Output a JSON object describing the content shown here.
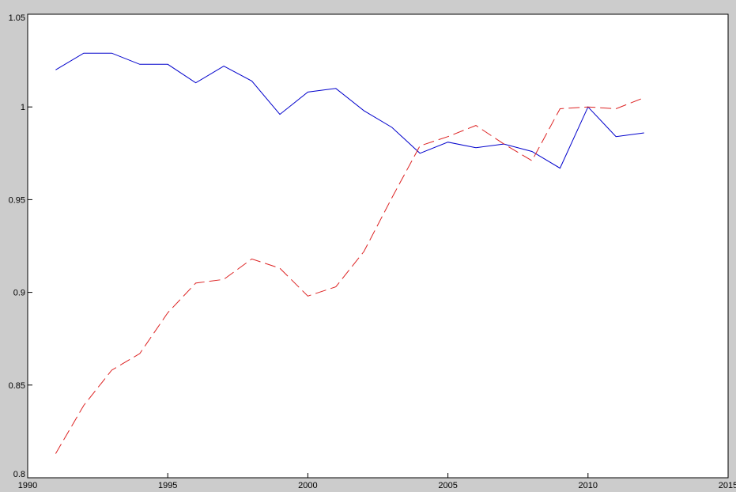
{
  "chart_data": {
    "type": "line",
    "title": "",
    "xlabel": "",
    "ylabel": "",
    "xlim": [
      1990,
      2015
    ],
    "ylim": [
      0.8,
      1.05
    ],
    "x_ticks": [
      1990,
      1995,
      2000,
      2005,
      2010,
      2015
    ],
    "x_tick_labels": [
      "1990",
      "1995",
      "2000",
      "2005",
      "2010",
      "2015"
    ],
    "y_ticks": [
      0.8,
      0.85,
      0.9,
      0.95,
      1.0,
      1.05
    ],
    "y_tick_labels": [
      "0.8",
      "0.85",
      "0.9",
      "0.95",
      "1",
      "1.05"
    ],
    "grid": false,
    "legend": "none",
    "x": [
      1991,
      1992,
      1993,
      1994,
      1995,
      1996,
      1997,
      1998,
      1999,
      2000,
      2001,
      2002,
      2003,
      2004,
      2005,
      2006,
      2007,
      2008,
      2009,
      2010,
      2011,
      2012
    ],
    "series": [
      {
        "color": "#0000cc",
        "dash": "solid",
        "values": [
          1.02,
          1.029,
          1.029,
          1.023,
          1.023,
          1.013,
          1.022,
          1.014,
          0.996,
          1.008,
          1.01,
          0.998,
          0.989,
          0.975,
          0.981,
          0.978,
          0.98,
          0.976,
          0.967,
          1.0,
          0.984,
          0.986
        ]
      },
      {
        "color": "#dd2222",
        "dash": "dashed",
        "values": [
          0.813,
          0.839,
          0.858,
          0.867,
          0.889,
          0.905,
          0.907,
          0.918,
          0.913,
          0.898,
          0.903,
          0.922,
          0.951,
          0.979,
          0.984,
          0.99,
          0.98,
          0.971,
          0.999,
          1.0,
          0.999,
          1.005
        ]
      }
    ]
  }
}
